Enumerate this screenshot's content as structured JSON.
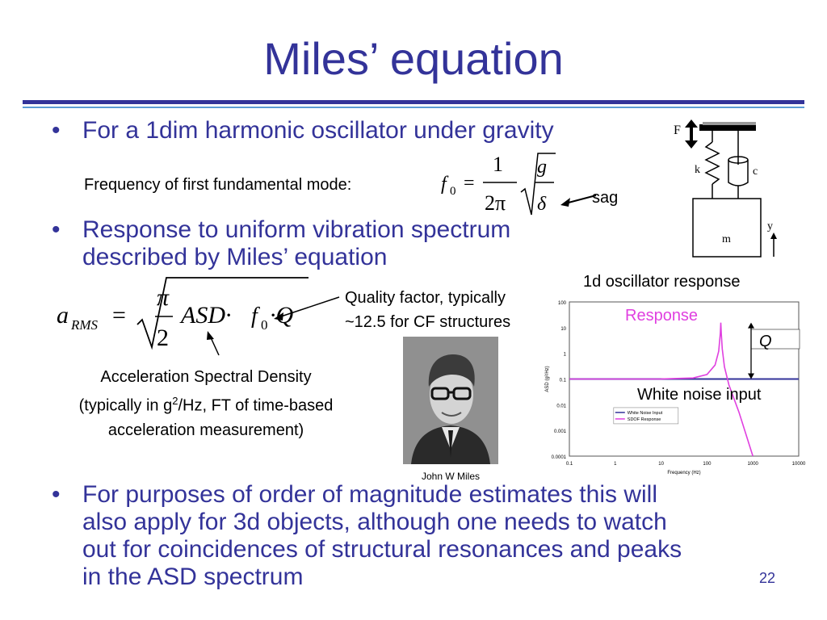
{
  "title": "Miles’ equation",
  "bullets": [
    "For a 1dim harmonic oscillator under gravity",
    "Response to uniform vibration spectrum",
    "described by Miles’ equation",
    "For purposes of order of magnitude estimates this will",
    "also apply for 3d objects, although one needs to watch",
    "out for coincidences of structural resonances and peaks",
    "in the ASD spectrum"
  ],
  "freq": {
    "label": "Frequency of first fundamental mode:",
    "f": "f",
    "sub0": "0",
    "eq": "=",
    "num": "1",
    "den": "2π",
    "g": "g",
    "delta": "δ",
    "sag": "sag"
  },
  "miles": {
    "a": "a",
    "rms": "RMS",
    "eq": "=",
    "pi": "π",
    "two": "2",
    "asd": "ASD·",
    "f": "f",
    "sub0": "0",
    "q": "·Q"
  },
  "quality_note": [
    "Quality factor, typically",
    "~12.5 for CF structures"
  ],
  "asd_note": [
    "Acceleration Spectral Density",
    "(typically in g",
    "2",
    "/Hz, FT of time-based",
    "acceleration measurement)"
  ],
  "photo_caption": "John W Miles",
  "oscillator": {
    "F": "F",
    "k": "k",
    "c": "c",
    "m": "m",
    "y": "y"
  },
  "plot_title": "1d oscillator response",
  "chart_data": {
    "type": "line",
    "x_scale": "log",
    "y_scale": "log",
    "xlim": [
      0.1,
      10000
    ],
    "ylim": [
      0.0001,
      100
    ],
    "x_ticks": [
      "0.1",
      "1",
      "10",
      "100",
      "1000",
      "10000"
    ],
    "y_ticks": [
      "100",
      "10",
      "1",
      "0.1",
      "0.01",
      "0.001",
      "0.0001"
    ],
    "xlabel": "Frequency (Hz)",
    "ylabel": "ASD (g²/Hz)",
    "legend": [
      "White Noise Input",
      "SDOF Response"
    ],
    "annotations": {
      "response": "Response",
      "q": "Q",
      "white_noise": "White noise input"
    },
    "series": [
      {
        "name": "White Noise Input",
        "color": "#333399",
        "x": [
          0.1,
          10000
        ],
        "y": [
          0.1,
          0.1
        ]
      },
      {
        "name": "SDOF Response",
        "color": "#e040e0",
        "x": [
          0.1,
          1,
          10,
          50,
          100,
          150,
          180,
          195,
          200,
          205,
          215,
          240,
          300,
          500,
          1000
        ],
        "y": [
          0.1,
          0.1,
          0.101,
          0.11,
          0.15,
          0.35,
          1.2,
          6,
          15.6,
          6,
          1.5,
          0.3,
          0.06,
          0.005,
          0.0001
        ]
      }
    ]
  },
  "page_number": "22"
}
